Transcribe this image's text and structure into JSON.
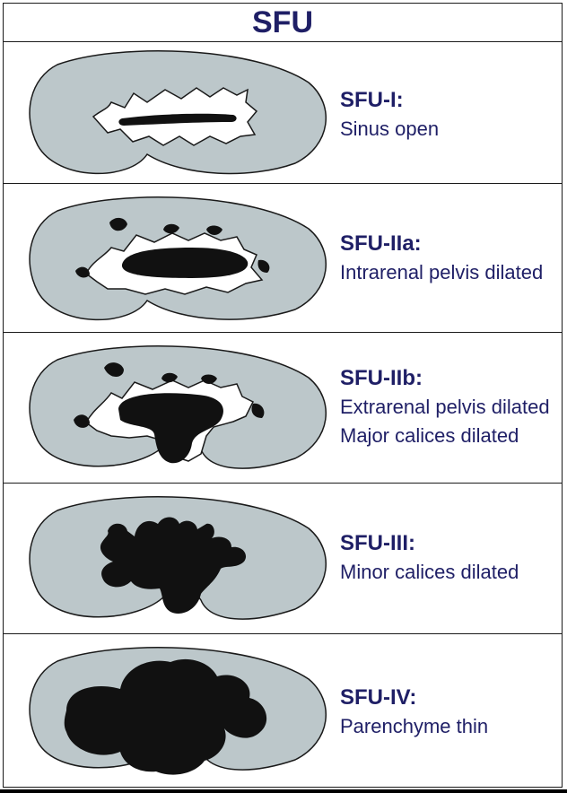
{
  "title": "SFU",
  "colors": {
    "text": "#1f1f66",
    "kidney": "#bcc7ca",
    "outline": "#1a1a1a",
    "fill": "#111111"
  },
  "grades": [
    {
      "grade": "SFU-I:",
      "lines": [
        "Sinus open"
      ]
    },
    {
      "grade": "SFU-IIa:",
      "lines": [
        "Intrarenal pelvis dilated"
      ]
    },
    {
      "grade": "SFU-IIb:",
      "lines": [
        "Extrarenal pelvis dilated",
        "Major calices dilated"
      ]
    },
    {
      "grade": "SFU-III:",
      "lines": [
        "Minor calices dilated"
      ]
    },
    {
      "grade": "SFU-IV:",
      "lines": [
        "Parenchyme thin"
      ]
    }
  ]
}
